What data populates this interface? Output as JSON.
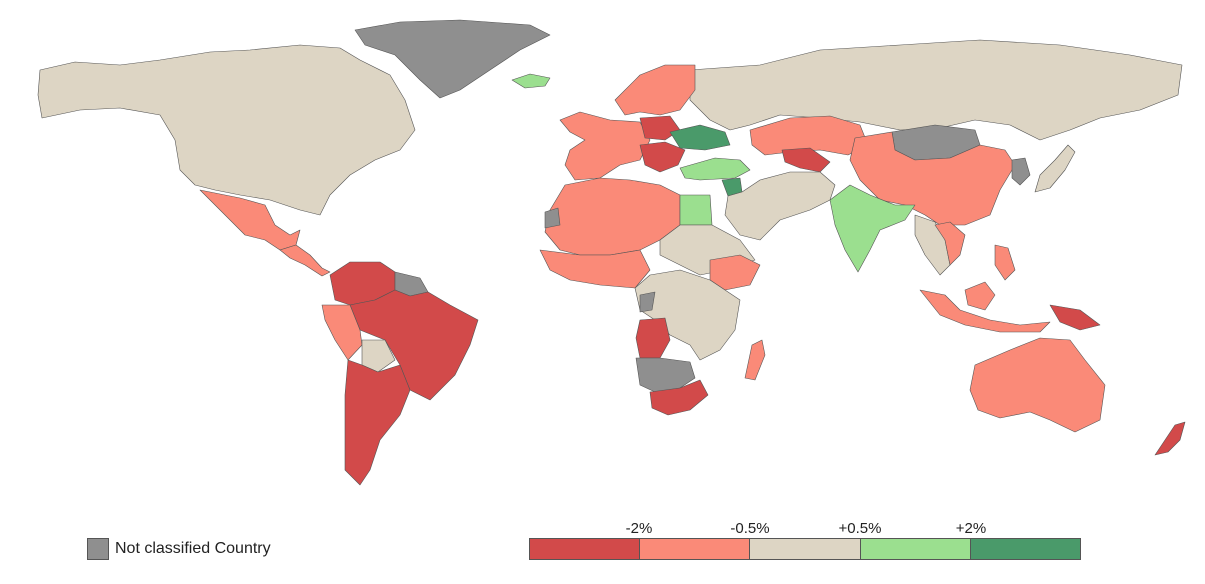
{
  "colors": {
    "neutral": "#ddd5c4",
    "strong_negative": "#d24a4a",
    "negative": "#fa8a78",
    "positive": "#9bdf8f",
    "strong_positive": "#4a9a6a",
    "not_classified": "#8f8f8f"
  },
  "legend": {
    "not_classified_label": "Not classified Country",
    "scale_bins": [
      {
        "color_key": "strong_negative",
        "meaning": "below -2%"
      },
      {
        "color_key": "negative",
        "meaning": "-2% to -0.5%"
      },
      {
        "color_key": "neutral",
        "meaning": "-0.5% to +0.5%"
      },
      {
        "color_key": "positive",
        "meaning": "+0.5% to +2%"
      },
      {
        "color_key": "strong_positive",
        "meaning": "above +2%"
      }
    ],
    "thresholds": [
      "-2%",
      "-0.5%",
      "+0.5%",
      "+2%"
    ]
  },
  "regions": [
    {
      "name": "north-america",
      "color_key": "neutral"
    },
    {
      "name": "greenland",
      "color_key": "not_classified"
    },
    {
      "name": "iceland",
      "color_key": "positive"
    },
    {
      "name": "mexico",
      "color_key": "negative"
    },
    {
      "name": "central-america",
      "color_key": "negative"
    },
    {
      "name": "venezuela-colombia-peru",
      "color_key": "strong_negative"
    },
    {
      "name": "guianas",
      "color_key": "not_classified"
    },
    {
      "name": "brazil",
      "color_key": "strong_negative"
    },
    {
      "name": "bolivia",
      "color_key": "neutral"
    },
    {
      "name": "ecuador-peru-coast",
      "color_key": "negative"
    },
    {
      "name": "southern-cone",
      "color_key": "strong_negative"
    },
    {
      "name": "russia",
      "color_key": "neutral"
    },
    {
      "name": "scandinavia",
      "color_key": "negative"
    },
    {
      "name": "western-europe",
      "color_key": "negative"
    },
    {
      "name": "poland",
      "color_key": "strong_negative"
    },
    {
      "name": "ukraine",
      "color_key": "strong_positive"
    },
    {
      "name": "balkans",
      "color_key": "strong_negative"
    },
    {
      "name": "turkey",
      "color_key": "positive"
    },
    {
      "name": "syria",
      "color_key": "strong_positive"
    },
    {
      "name": "kazakhstan",
      "color_key": "negative"
    },
    {
      "name": "uzbekistan",
      "color_key": "strong_negative"
    },
    {
      "name": "mongolia",
      "color_key": "not_classified"
    },
    {
      "name": "china",
      "color_key": "negative"
    },
    {
      "name": "korea",
      "color_key": "not_classified"
    },
    {
      "name": "japan",
      "color_key": "neutral"
    },
    {
      "name": "middle-east",
      "color_key": "neutral"
    },
    {
      "name": "india",
      "color_key": "positive"
    },
    {
      "name": "southeast-asia",
      "color_key": "neutral"
    },
    {
      "name": "vietnam-laos",
      "color_key": "negative"
    },
    {
      "name": "indonesia-philippines",
      "color_key": "negative"
    },
    {
      "name": "papua",
      "color_key": "strong_negative"
    },
    {
      "name": "australia",
      "color_key": "negative"
    },
    {
      "name": "new-zealand",
      "color_key": "strong_negative"
    },
    {
      "name": "north-africa",
      "color_key": "negative"
    },
    {
      "name": "western-sahara",
      "color_key": "not_classified"
    },
    {
      "name": "egypt",
      "color_key": "positive"
    },
    {
      "name": "west-africa",
      "color_key": "negative"
    },
    {
      "name": "sahel-east",
      "color_key": "neutral"
    },
    {
      "name": "ethiopia",
      "color_key": "negative"
    },
    {
      "name": "central-africa",
      "color_key": "neutral"
    },
    {
      "name": "angola",
      "color_key": "strong_negative"
    },
    {
      "name": "congo",
      "color_key": "not_classified"
    },
    {
      "name": "namibia-botswana",
      "color_key": "not_classified"
    },
    {
      "name": "south-africa",
      "color_key": "strong_negative"
    },
    {
      "name": "madagascar",
      "color_key": "negative"
    }
  ]
}
